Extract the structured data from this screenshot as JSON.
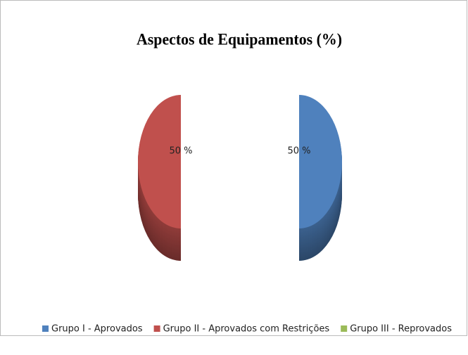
{
  "chart_data": {
    "type": "pie",
    "title": "Aspectos de Equipamentos (%)",
    "categories": [
      "Grupo I - Aprovados",
      "Grupo II - Aprovados com Restrições",
      "Grupo III - Reprovados"
    ],
    "values": [
      50,
      50,
      0
    ],
    "value_labels": [
      "50 %",
      "50 %",
      null
    ],
    "colors": [
      "#4f81bd",
      "#c0504d",
      "#9bbb59"
    ],
    "legend": "bottom"
  }
}
